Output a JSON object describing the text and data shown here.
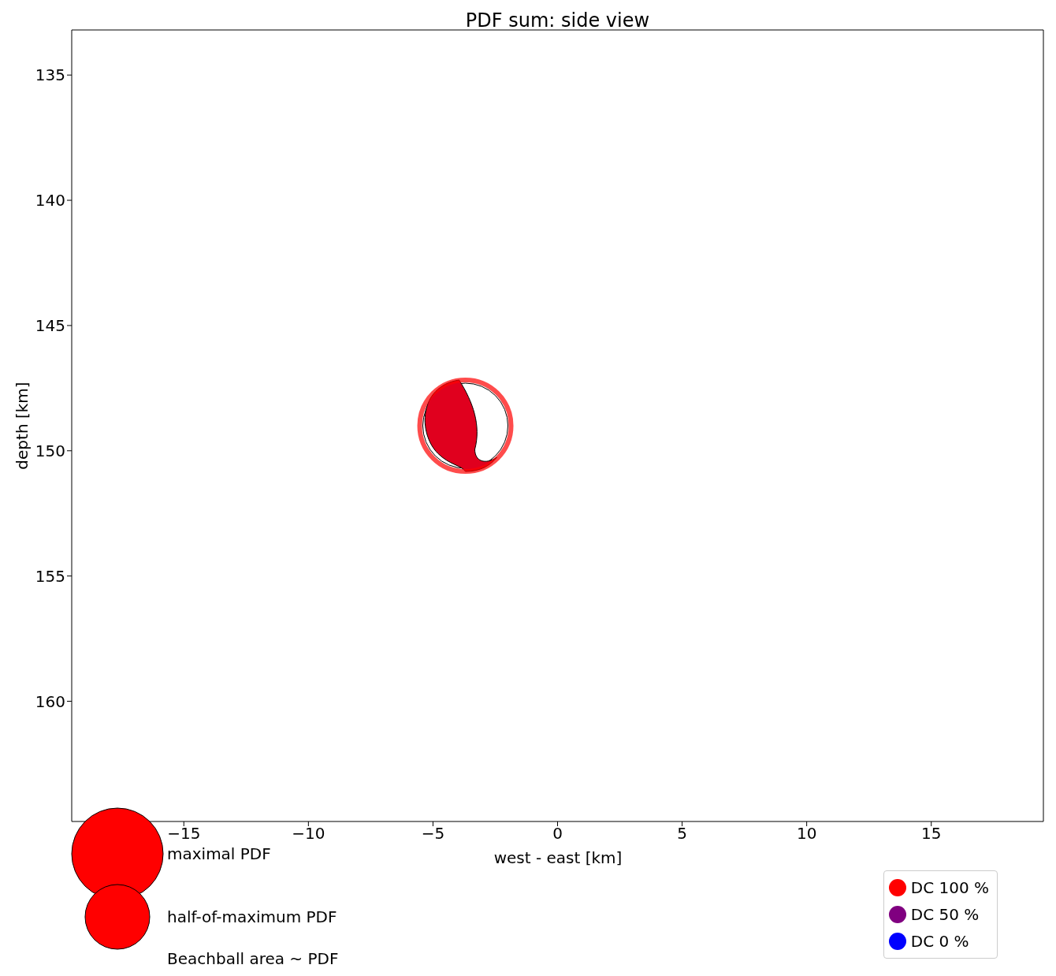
{
  "chart_data": {
    "type": "bubble",
    "title": "PDF sum: side view",
    "xlabel": "west - east [km]",
    "ylabel": "depth [km]",
    "xlim": [
      -19.5,
      19.5
    ],
    "xticks": [
      {
        "value": -15,
        "label": "−15"
      },
      {
        "value": -10,
        "label": "−10"
      },
      {
        "value": -5,
        "label": "−5"
      },
      0,
      5,
      10,
      15
    ],
    "ylim": [
      164.8,
      133.2
    ],
    "yticks": [
      135,
      140,
      145,
      150,
      155,
      160
    ],
    "series": [
      {
        "name": "DC 100 %",
        "color": "#ff0000",
        "x": [
          -3.7
        ],
        "values": [
          149.0
        ],
        "sizes": [
          1
        ]
      },
      {
        "name": "DC 50 %",
        "color": "#800080"
      },
      {
        "name": "DC 0 %",
        "color": "#0000ff"
      }
    ],
    "size_legend": [
      {
        "value": 1,
        "label": "maximal PDF"
      },
      {
        "value": 0.5,
        "label": "half-of-maximum PDF"
      }
    ],
    "annotations": [
      "Beachball area ~ PDF"
    ],
    "grid": false,
    "legend": "bottom right"
  }
}
